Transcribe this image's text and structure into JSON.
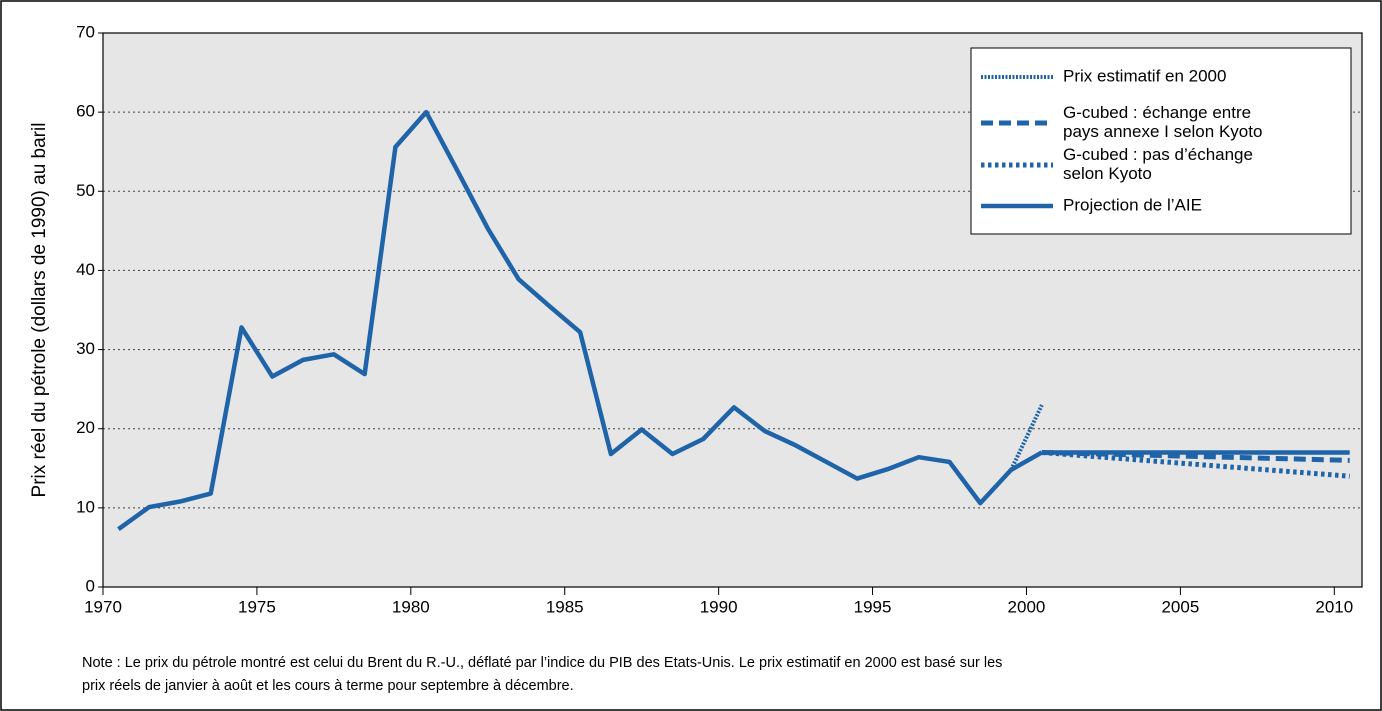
{
  "chart_data": {
    "type": "line",
    "y_label": "Prix réel du pétrole (dollars de 1990) au baril",
    "note": [
      "Note : Le prix du pétrole montré est celui du Brent du R.-U., déflaté par l’indice du PIB des Etats-Unis. Le prix estimatif en 2000 est basé sur les",
      "prix réels de janvier à août et les cours à terme pour septembre à décembre."
    ],
    "xlim": [
      1970,
      2010.9
    ],
    "xticks": [
      1970,
      1975,
      1980,
      1985,
      1990,
      1995,
      2000,
      2005,
      2010
    ],
    "ylim": [
      0,
      70
    ],
    "yticks": [
      0,
      10,
      20,
      30,
      40,
      50,
      60,
      70
    ],
    "grid": true,
    "background": "#e6e6e6",
    "legend": "upper right",
    "series": [
      {
        "name": [
          "Prix estimatif en 2000"
        ],
        "color": "#1f63a8",
        "style": "dense-dotted",
        "x": [
          1999.5,
          2000.5
        ],
        "values": [
          14.8,
          23.0
        ]
      },
      {
        "name": [
          "G-cubed : échange entre",
          "pays annexe I selon Kyoto"
        ],
        "color": "#1f63a8",
        "style": "dashed",
        "x": [
          2000.5,
          2010.5
        ],
        "values": [
          17.0,
          16.0
        ]
      },
      {
        "name": [
          "G-cubed : pas d’échange",
          "selon Kyoto"
        ],
        "color": "#1f63a8",
        "style": "dotted",
        "x": [
          2000.5,
          2010.5
        ],
        "values": [
          17.0,
          14.0
        ]
      },
      {
        "name": [
          "Projection de l’AIE"
        ],
        "color": "#1f63a8",
        "style": "solid",
        "x": [
          2000.5,
          2010.5
        ],
        "values": [
          17.0,
          17.0
        ]
      },
      {
        "color": "#1f63a8",
        "style": "solid",
        "x": [
          1970.5,
          1971.5,
          1972.5,
          1973.5,
          1974.5,
          1975.5,
          1976.5,
          1977.5,
          1978.5,
          1979.5,
          1980.5,
          1981.5,
          1982.5,
          1983.5,
          1984.5,
          1985.5,
          1986.5,
          1987.5,
          1988.5,
          1989.5,
          1990.5,
          1991.5,
          1992.5,
          1993.5,
          1994.5,
          1995.5,
          1996.5,
          1997.5,
          1998.5,
          1999.5,
          2000.5
        ],
        "values": [
          7.3,
          10.1,
          10.8,
          11.8,
          32.8,
          26.6,
          28.7,
          29.4,
          26.9,
          55.6,
          60.0,
          52.7,
          45.3,
          38.9,
          35.5,
          32.2,
          16.8,
          19.9,
          16.8,
          18.7,
          22.7,
          19.7,
          17.9,
          15.8,
          13.7,
          14.9,
          16.4,
          15.8,
          10.6,
          14.8,
          17.0
        ]
      }
    ]
  }
}
